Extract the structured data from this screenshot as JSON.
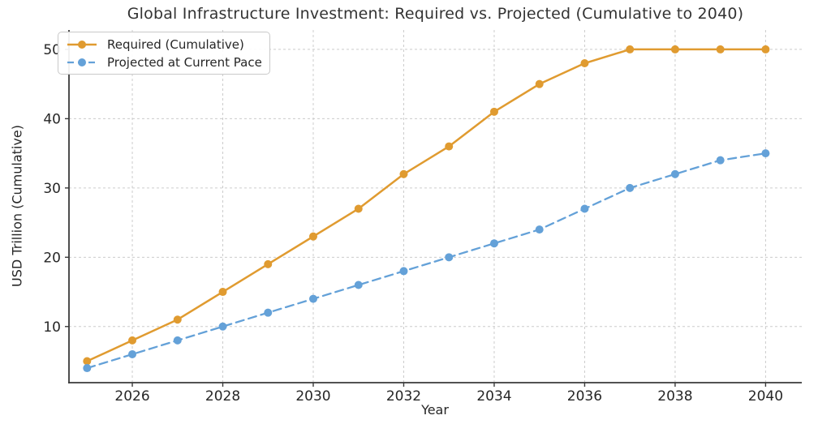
{
  "chart_data": {
    "type": "line",
    "title": "Global Infrastructure Investment: Required vs. Projected (Cumulative to 2040)",
    "xlabel": "Year",
    "ylabel": "USD Trillion (Cumulative)",
    "x": [
      2025,
      2026,
      2027,
      2028,
      2029,
      2030,
      2031,
      2032,
      2033,
      2034,
      2035,
      2036,
      2037,
      2038,
      2039,
      2040
    ],
    "series": [
      {
        "name": "Required (Cumulative)",
        "color": "#E09B30",
        "line_style": "solid",
        "marker": "circle",
        "values": [
          5,
          8,
          11,
          15,
          19,
          23,
          27,
          32,
          36,
          41,
          45,
          48,
          50,
          50,
          50,
          50
        ]
      },
      {
        "name": "Projected at Current Pace",
        "color": "#64A1D8",
        "line_style": "dashed",
        "marker": "circle",
        "values": [
          4,
          6,
          8,
          10,
          12,
          14,
          16,
          18,
          20,
          22,
          24,
          27,
          30,
          32,
          34,
          35
        ]
      }
    ],
    "x_ticks": [
      2026,
      2028,
      2030,
      2032,
      2034,
      2036,
      2038,
      2040
    ],
    "y_ticks": [
      10,
      20,
      30,
      40,
      50
    ],
    "x_range": [
      2024.6,
      2040.8
    ],
    "y_range": [
      1.9,
      52.8
    ],
    "grid": true,
    "grid_color": "#cccccc",
    "spine_color": "#3a3a3a",
    "tick_text_color": "#262626",
    "legend_position": "upper left"
  }
}
